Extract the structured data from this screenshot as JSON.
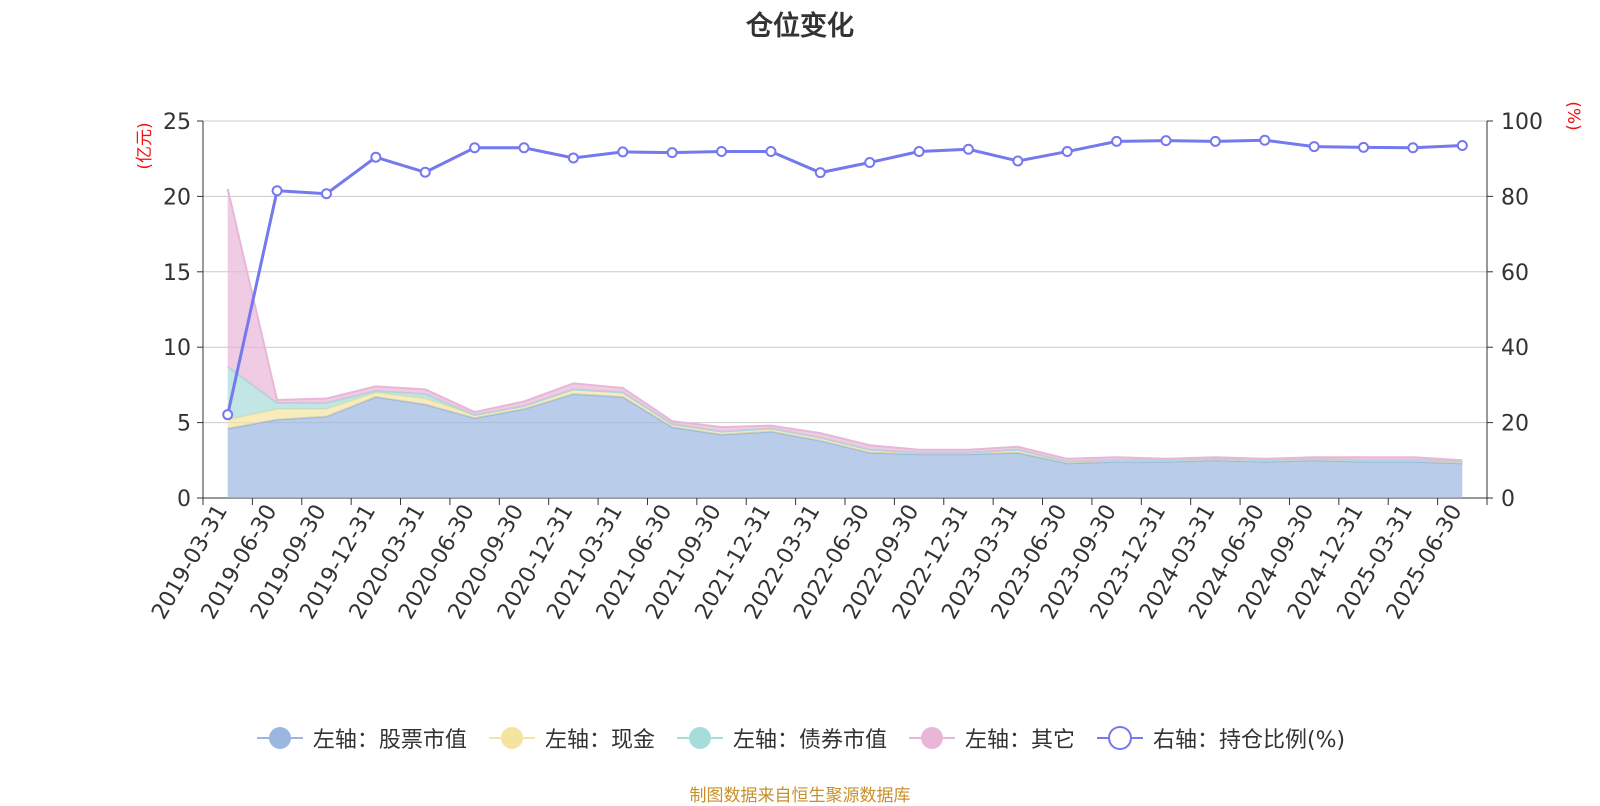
{
  "chart_data": {
    "type": "area",
    "title": "仓位变化",
    "left_axis_unit": "(亿元)",
    "right_axis_unit": "(%)",
    "categories": [
      "2019-03-31",
      "2019-06-30",
      "2019-09-30",
      "2019-12-31",
      "2020-03-31",
      "2020-06-30",
      "2020-09-30",
      "2020-12-31",
      "2021-03-31",
      "2021-06-30",
      "2021-09-30",
      "2021-12-31",
      "2022-03-31",
      "2022-06-30",
      "2022-09-30",
      "2022-12-31",
      "2023-03-31",
      "2023-06-30",
      "2023-09-30",
      "2023-12-31",
      "2024-03-31",
      "2024-06-30",
      "2024-09-30",
      "2024-12-31",
      "2025-03-31",
      "2025-06-30"
    ],
    "ylim_left": [
      0,
      25
    ],
    "yticks_left": [
      0,
      5,
      10,
      15,
      20,
      25
    ],
    "ylim_right": [
      0,
      100
    ],
    "yticks_right": [
      0,
      20,
      40,
      60,
      80,
      100
    ],
    "stacked": true,
    "series": [
      {
        "name": "左轴：股票市值",
        "axis": "left",
        "color": "#9bb7e0",
        "values": [
          4.6,
          5.2,
          5.4,
          6.7,
          6.2,
          5.3,
          5.9,
          6.9,
          6.7,
          4.7,
          4.2,
          4.4,
          3.8,
          3.0,
          2.9,
          2.9,
          3.0,
          2.3,
          2.4,
          2.4,
          2.5,
          2.4,
          2.5,
          2.4,
          2.4,
          2.3
        ]
      },
      {
        "name": "左轴：现金",
        "axis": "left",
        "color": "#f5e3a0",
        "values": [
          0.6,
          0.7,
          0.5,
          0.3,
          0.4,
          0.2,
          0.2,
          0.3,
          0.3,
          0.2,
          0.2,
          0.2,
          0.2,
          0.2,
          0.1,
          0.1,
          0.2,
          0.1,
          0.1,
          0.1,
          0.1,
          0.1,
          0.1,
          0.1,
          0.1,
          0.1
        ]
      },
      {
        "name": "左轴：债券市值",
        "axis": "left",
        "color": "#a6dcda",
        "values": [
          3.5,
          0.4,
          0.4,
          0.1,
          0.3,
          0,
          0,
          0,
          0,
          0,
          0,
          0,
          0,
          0,
          0,
          0,
          0,
          0,
          0,
          0,
          0,
          0,
          0,
          0,
          0,
          0
        ]
      },
      {
        "name": "左轴：其它",
        "axis": "left",
        "color": "#e8b7d8",
        "values": [
          11.8,
          0.2,
          0.3,
          0.3,
          0.3,
          0.2,
          0.3,
          0.4,
          0.3,
          0.2,
          0.3,
          0.2,
          0.3,
          0.3,
          0.2,
          0.2,
          0.2,
          0.2,
          0.2,
          0.1,
          0.1,
          0.1,
          0.1,
          0.2,
          0.2,
          0.1
        ]
      },
      {
        "name": "右轴：持仓比例(%)",
        "axis": "right",
        "type": "line",
        "color": "#7479ee",
        "values": [
          22.1,
          81.5,
          80.7,
          90.4,
          86.4,
          92.9,
          92.9,
          90.2,
          91.8,
          91.6,
          91.9,
          91.9,
          86.3,
          89.0,
          91.9,
          92.5,
          89.4,
          91.9,
          94.6,
          94.8,
          94.6,
          94.9,
          93.2,
          93.0,
          92.9,
          93.5
        ]
      }
    ]
  },
  "source_text": "制图数据来自恒生聚源数据库"
}
